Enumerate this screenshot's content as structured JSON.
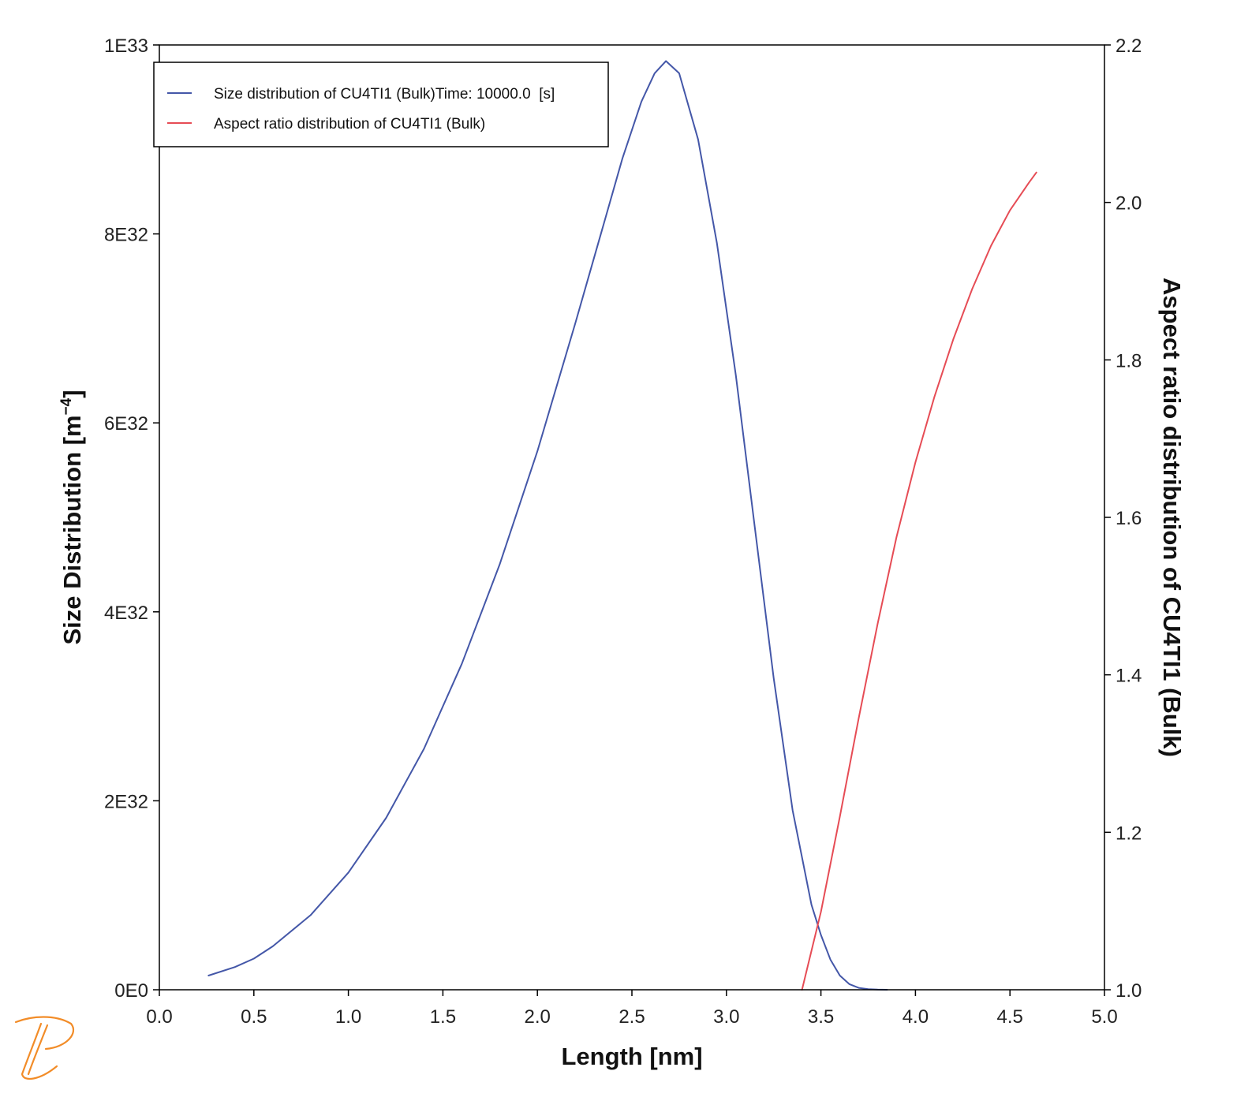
{
  "chart_data": {
    "type": "line",
    "title": "",
    "xlabel": "Length [nm]",
    "ylabel": {
      "base": "Size Distribution [m",
      "exponent": "−4",
      "close": "]"
    },
    "y2label": "Aspect ratio distribution of CU4TI1 (Bulk)",
    "xlim": [
      0,
      5
    ],
    "ylim": [
      0,
      1e+33
    ],
    "y2lim": [
      1.0,
      2.2
    ],
    "grid": false,
    "legend_position": "top-left",
    "x_ticks": [
      {
        "v": 0.0,
        "label": "0.0"
      },
      {
        "v": 0.5,
        "label": "0.5"
      },
      {
        "v": 1.0,
        "label": "1.0"
      },
      {
        "v": 1.5,
        "label": "1.5"
      },
      {
        "v": 2.0,
        "label": "2.0"
      },
      {
        "v": 2.5,
        "label": "2.5"
      },
      {
        "v": 3.0,
        "label": "3.0"
      },
      {
        "v": 3.5,
        "label": "3.5"
      },
      {
        "v": 4.0,
        "label": "4.0"
      },
      {
        "v": 4.5,
        "label": "4.5"
      },
      {
        "v": 5.0,
        "label": "5.0"
      }
    ],
    "y_ticks": [
      {
        "v": 0,
        "label": "0E0"
      },
      {
        "v": 2e+32,
        "label": "2E32"
      },
      {
        "v": 4e+32,
        "label": "4E32"
      },
      {
        "v": 6e+32,
        "label": "6E32"
      },
      {
        "v": 8e+32,
        "label": "8E32"
      },
      {
        "v": 1e+33,
        "label": "1E33"
      }
    ],
    "y2_ticks": [
      {
        "v": 1.0,
        "label": "1.0"
      },
      {
        "v": 1.2,
        "label": "1.2"
      },
      {
        "v": 1.4,
        "label": "1.4"
      },
      {
        "v": 1.6,
        "label": "1.6"
      },
      {
        "v": 1.8,
        "label": "1.8"
      },
      {
        "v": 2.0,
        "label": "2.0"
      },
      {
        "v": 2.2,
        "label": "2.2"
      }
    ],
    "series": [
      {
        "name": "Size distribution of CU4TI1 (Bulk)Time: 10000.0  [s]",
        "axis": "left",
        "color": "#4457a8",
        "x": [
          0.26,
          0.4,
          0.5,
          0.6,
          0.8,
          1.0,
          1.2,
          1.4,
          1.6,
          1.8,
          2.0,
          2.2,
          2.35,
          2.45,
          2.55,
          2.62,
          2.68,
          2.75,
          2.85,
          2.95,
          3.05,
          3.15,
          3.25,
          3.35,
          3.45,
          3.5,
          3.55,
          3.6,
          3.65,
          3.7,
          3.75,
          3.8,
          3.85
        ],
        "y": [
          1.5e+31,
          2.4e+31,
          3.3e+31,
          4.6e+31,
          7.9e+31,
          1.24e+32,
          1.82e+32,
          2.55e+32,
          3.45e+32,
          4.5e+32,
          5.7e+32,
          7.05e+32,
          8.1e+32,
          8.8e+32,
          9.4e+32,
          9.7e+32,
          9.83e+32,
          9.7e+32,
          9e+32,
          7.9e+32,
          6.5e+32,
          4.9e+32,
          3.3e+32,
          1.9e+32,
          9e+31,
          5.8e+31,
          3.2e+31,
          1.5e+31,
          6e+30,
          2e+30,
          6e+29,
          2e+29,
          0
        ]
      },
      {
        "name": "Aspect ratio distribution of CU4TI1 (Bulk)",
        "axis": "right",
        "color": "#e64c55",
        "x": [
          3.4,
          3.5,
          3.6,
          3.7,
          3.8,
          3.9,
          4.0,
          4.1,
          4.2,
          4.3,
          4.4,
          4.5,
          4.6,
          4.64
        ],
        "y": [
          1.0,
          1.099,
          1.22,
          1.345,
          1.465,
          1.575,
          1.67,
          1.753,
          1.826,
          1.89,
          1.945,
          1.99,
          2.025,
          2.038
        ]
      }
    ]
  },
  "logo": {
    "name": "thermo-calc-logo",
    "color": "#f28c28"
  }
}
